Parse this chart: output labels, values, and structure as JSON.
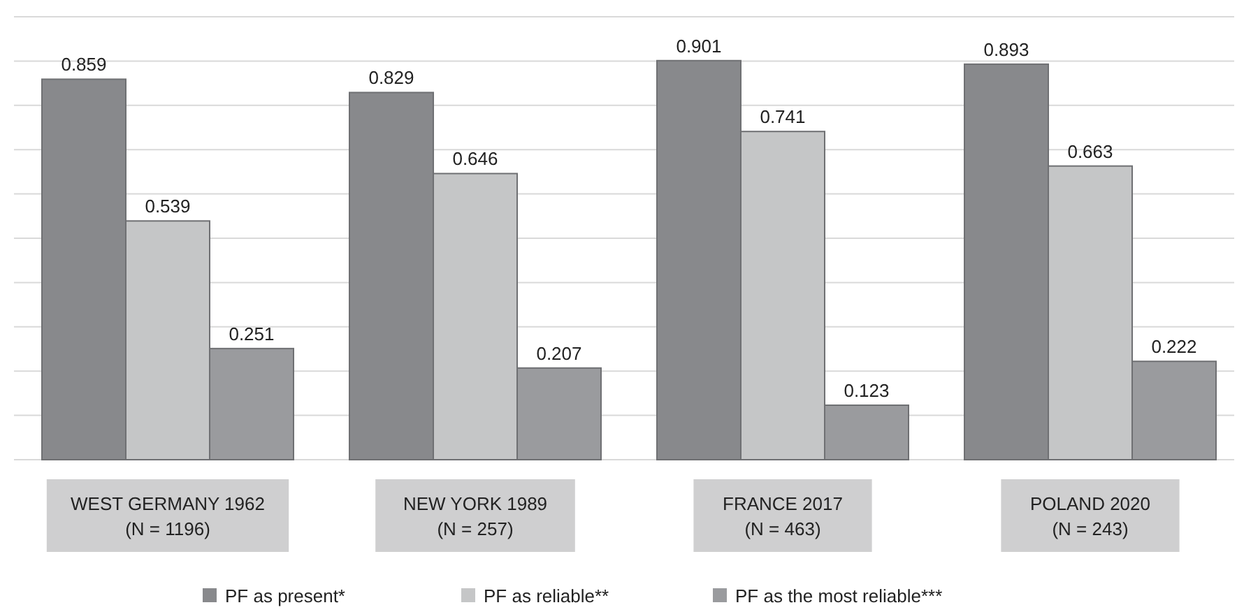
{
  "chart_data": {
    "type": "bar",
    "categories": [
      "WEST GERMANY 1962\n(N = 1196)",
      "NEW YORK 1989\n(N = 257)",
      "FRANCE 2017\n(N = 463)",
      "POLAND 2020\n(N = 243)"
    ],
    "series": [
      {
        "name": "PF as present*",
        "color": "#88898c",
        "values": [
          0.859,
          0.829,
          0.901,
          0.893
        ]
      },
      {
        "name": "PF as reliable**",
        "color": "#c5c6c7",
        "values": [
          0.539,
          0.646,
          0.741,
          0.663
        ]
      },
      {
        "name": "PF as the most reliable***",
        "color": "#9a9b9e",
        "values": [
          0.251,
          0.207,
          0.123,
          0.222
        ]
      }
    ],
    "ylim": [
      0,
      1
    ],
    "yticks": [
      {
        "value": 0,
        "label": null
      },
      {
        "value": 0.1,
        "label": null
      },
      {
        "value": 0.2,
        "label": null
      },
      {
        "value": 0.3,
        "label": null
      },
      {
        "value": 0.4,
        "label": null
      },
      {
        "value": 0.5,
        "label": null
      },
      {
        "value": 0.6,
        "label": null
      },
      {
        "value": 0.7,
        "label": null
      },
      {
        "value": 0.8,
        "label": null
      },
      {
        "value": 0.9,
        "label": null
      },
      {
        "value": 1,
        "label": null
      }
    ],
    "grid": "y",
    "data_labels": true,
    "legend": "bottom",
    "tick_labels": "x"
  }
}
